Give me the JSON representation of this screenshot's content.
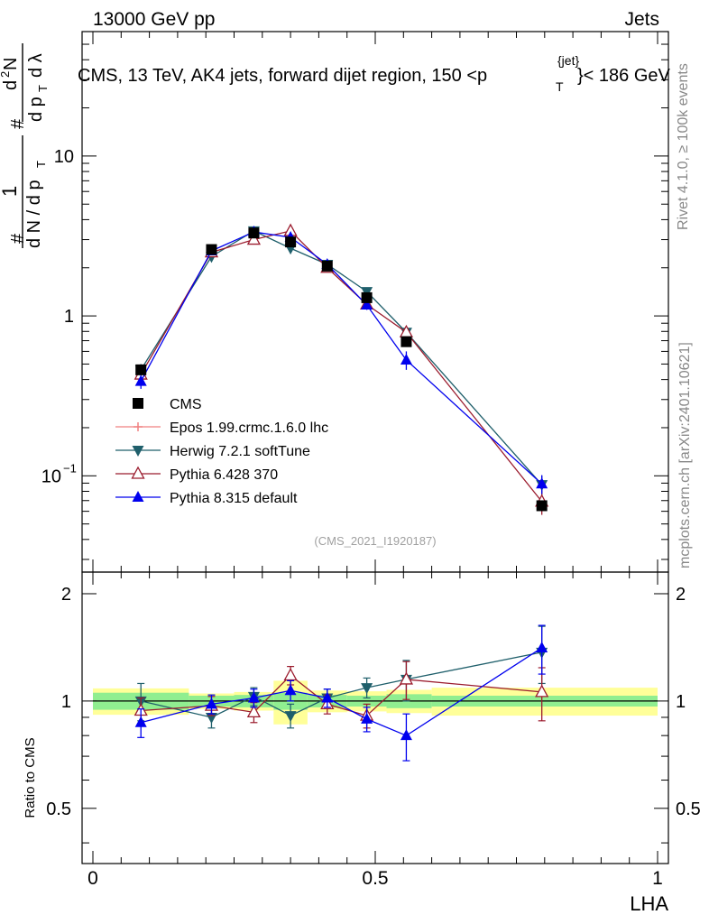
{
  "header": {
    "left": "13000 GeV pp",
    "right": "Jets"
  },
  "title": {
    "part1": "CMS, 13 TeV, AK4 jets, forward dijet region, 150 <p",
    "sup": "{jet}",
    "sub": "T",
    "part2": "}< 186 GeV"
  },
  "side_labels": {
    "rivet": "Rivet 4.1.0, ≥ 100k events",
    "mcplots": "mcplots.cern.ch [arXiv:2401.10621]"
  },
  "analysis_tag": "(CMS_2021_I1920187)",
  "y_label_top": {
    "hash1": "#",
    "one": "1",
    "den": "d N / d p",
    "den_sub": "T",
    "hash2": "#",
    "num": "d",
    "num_sup": "2",
    "num_n": "N",
    "den2": "d p",
    "den2_sub": "T",
    "den2_tail": "d λ"
  },
  "y_label_bottom": "Ratio to CMS",
  "x_label": "LHA",
  "colors": {
    "cms": "#000000",
    "epos": "#f08080",
    "herwig": "#1f5f6b",
    "pythia6": "#9b1c2e",
    "pythia8": "#0000ee",
    "band_inner": "#90ee90",
    "band_outer": "#ffff99"
  },
  "legend": [
    {
      "key": "cms",
      "label": "CMS"
    },
    {
      "key": "epos",
      "label": "Epos 1.99.crmc.1.6.0 lhc"
    },
    {
      "key": "herwig",
      "label": "Herwig 7.2.1 softTune"
    },
    {
      "key": "pythia6",
      "label": "Pythia 6.428 370"
    },
    {
      "key": "pythia8",
      "label": "Pythia 8.315 default"
    }
  ],
  "chart_data": {
    "type": "scatter",
    "title": "CMS, 13 TeV, AK4 jets, forward dijet region, 150 < pT jet < 186 GeV",
    "xlabel": "LHA",
    "xlim": [
      0,
      1
    ],
    "main": {
      "yscale": "log",
      "ylim": [
        0.025,
        60
      ],
      "yticks": [
        {
          "v": 0.1,
          "base": "10",
          "exp": "−1"
        },
        {
          "v": 1,
          "base": "1",
          "exp": ""
        },
        {
          "v": 10,
          "base": "10",
          "exp": ""
        }
      ]
    },
    "ratio": {
      "ylabel": "Ratio to CMS",
      "ylim": [
        0.35,
        2.3
      ],
      "yticks": [
        {
          "v": 0.5,
          "label": "0.5"
        },
        {
          "v": 1,
          "label": "1"
        },
        {
          "v": 2,
          "label": "2"
        }
      ]
    },
    "xticks": [
      {
        "v": 0,
        "label": "0"
      },
      {
        "v": 0.5,
        "label": "0.5"
      },
      {
        "v": 1,
        "label": "1"
      }
    ],
    "bins": [
      {
        "lo": 0.0,
        "hi": 0.17,
        "inner": 0.055,
        "outer": 0.085
      },
      {
        "lo": 0.17,
        "hi": 0.25,
        "inner": 0.035,
        "outer": 0.05
      },
      {
        "lo": 0.25,
        "hi": 0.32,
        "inner": 0.04,
        "outer": 0.06
      },
      {
        "lo": 0.32,
        "hi": 0.38,
        "inner": 0.055,
        "outer": 0.14
      },
      {
        "lo": 0.38,
        "hi": 0.45,
        "inner": 0.04,
        "outer": 0.07
      },
      {
        "lo": 0.45,
        "hi": 0.52,
        "inner": 0.035,
        "outer": 0.065
      },
      {
        "lo": 0.52,
        "hi": 0.6,
        "inner": 0.045,
        "outer": 0.075
      },
      {
        "lo": 0.6,
        "hi": 1.0,
        "inner": 0.035,
        "outer": 0.09
      }
    ],
    "x": [
      0.085,
      0.21,
      0.285,
      0.35,
      0.415,
      0.485,
      0.555,
      0.795
    ],
    "series": [
      {
        "key": "cms",
        "name": "CMS",
        "marker": "square",
        "values": [
          0.46,
          2.6,
          3.3,
          2.9,
          2.05,
          1.3,
          0.69,
          0.065
        ],
        "errors": [
          0.03,
          0.1,
          0.1,
          0.1,
          0.08,
          0.05,
          0.03,
          0.004
        ]
      },
      {
        "key": "herwig",
        "name": "Herwig 7.2.1 softTune",
        "marker": "tri-down",
        "values": [
          0.46,
          2.35,
          3.4,
          2.65,
          2.1,
          1.42,
          0.79,
          0.088
        ],
        "errors": [
          0.04,
          0.12,
          0.15,
          0.15,
          0.1,
          0.08,
          0.06,
          0.012
        ],
        "ratio": [
          1.0,
          0.9,
          1.03,
          0.91,
          1.02,
          1.09,
          1.15,
          1.37
        ],
        "ratio_err": [
          0.12,
          0.06,
          0.06,
          0.07,
          0.06,
          0.07,
          0.15,
          0.25
        ]
      },
      {
        "key": "pythia6",
        "name": "Pythia 6.428 370",
        "marker": "tri-up-open",
        "values": [
          0.43,
          2.5,
          3.0,
          3.4,
          2.0,
          1.18,
          0.79,
          0.069
        ],
        "errors": [
          0.04,
          0.12,
          0.12,
          0.15,
          0.1,
          0.08,
          0.06,
          0.012
        ],
        "ratio": [
          0.94,
          0.97,
          0.93,
          1.18,
          0.98,
          0.91,
          1.15,
          1.06
        ],
        "ratio_err": [
          0.08,
          0.06,
          0.06,
          0.07,
          0.06,
          0.07,
          0.14,
          0.18
        ]
      },
      {
        "key": "pythia8",
        "name": "Pythia 8.315 default",
        "marker": "tri-up",
        "values": [
          0.39,
          2.55,
          3.35,
          3.1,
          2.1,
          1.17,
          0.53,
          0.089
        ],
        "errors": [
          0.04,
          0.12,
          0.15,
          0.15,
          0.1,
          0.08,
          0.07,
          0.012
        ],
        "ratio": [
          0.87,
          0.98,
          1.02,
          1.07,
          1.02,
          0.89,
          0.8,
          1.41
        ],
        "ratio_err": [
          0.08,
          0.06,
          0.06,
          0.07,
          0.06,
          0.07,
          0.12,
          0.22
        ]
      }
    ]
  }
}
